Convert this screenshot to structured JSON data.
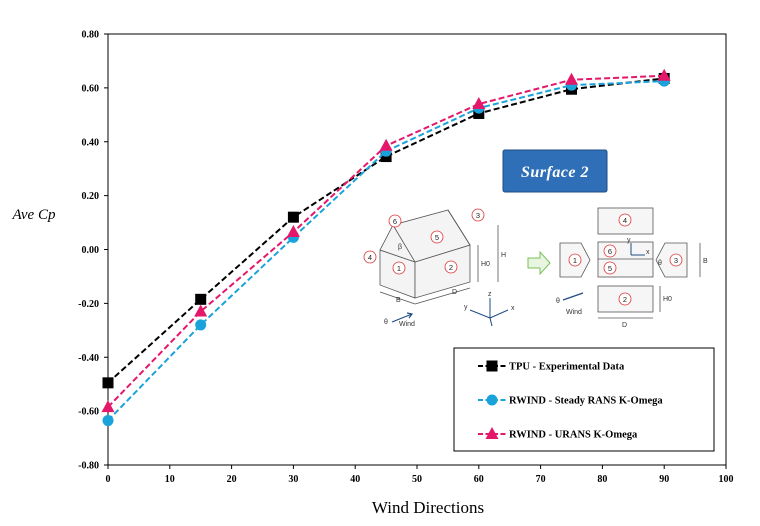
{
  "chart_data": {
    "type": "line",
    "title": "",
    "xlabel": "Wind Directions",
    "ylabel": "Ave Cp",
    "xlim": [
      0,
      100
    ],
    "ylim": [
      -0.8,
      0.8
    ],
    "x_ticks": [
      "0",
      "10",
      "20",
      "30",
      "40",
      "50",
      "60",
      "70",
      "80",
      "90",
      "100"
    ],
    "y_ticks": [
      "0.80",
      "0.60",
      "0.40",
      "0.20",
      "0.00",
      "-0.20",
      "-0.40",
      "-0.60",
      "-0.80"
    ],
    "x": [
      0,
      15,
      30,
      45,
      60,
      75,
      90
    ],
    "grid": false,
    "legend_position": "bottom-right",
    "series": [
      {
        "name": "TPU - Experimental Data",
        "color": "#000000",
        "marker": "square",
        "values": [
          -0.495,
          -0.185,
          0.12,
          0.345,
          0.505,
          0.595,
          0.635
        ]
      },
      {
        "name": "RWIND - Steady RANS K-Omega",
        "color": "#1aa3db",
        "marker": "circle",
        "values": [
          -0.635,
          -0.28,
          0.045,
          0.365,
          0.525,
          0.61,
          0.625
        ]
      },
      {
        "name": "RWIND - URANS K-Omega",
        "color": "#e5176a",
        "marker": "triangle",
        "values": [
          -0.585,
          -0.23,
          0.065,
          0.385,
          0.54,
          0.63,
          0.645
        ]
      }
    ]
  },
  "badge": {
    "text": "Surface 2",
    "color": "#2f6fb7"
  },
  "diagram": {
    "face_labels": [
      "1",
      "2",
      "3",
      "4",
      "5",
      "6"
    ],
    "dim_labels": {
      "b": "B",
      "d": "D",
      "h": "H",
      "h0": "H0",
      "beta": "β"
    },
    "axis_labels": {
      "x": "x",
      "y": "y",
      "z": "z"
    },
    "wind_label": "Wind",
    "theta": "θ"
  }
}
